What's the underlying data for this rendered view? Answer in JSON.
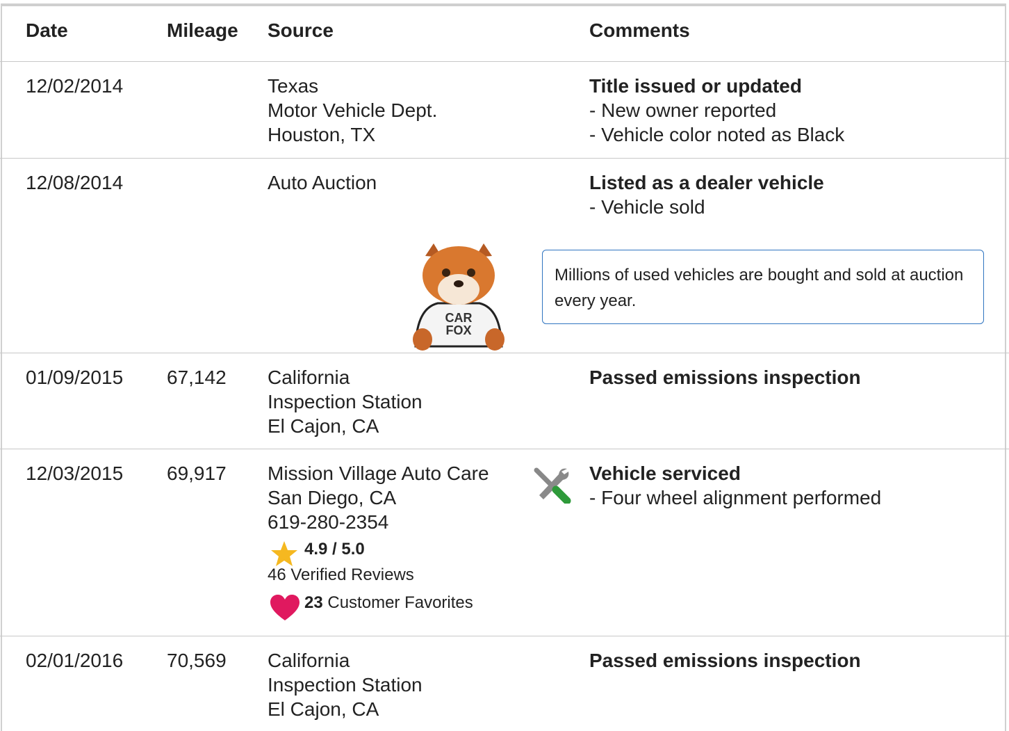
{
  "table": {
    "headers": [
      "Date",
      "Mileage",
      "Source",
      "Comments"
    ],
    "rows": [
      {
        "date": "12/02/2014",
        "source": [
          "Texas",
          "Motor Vehicle Dept.",
          "Houston, TX"
        ],
        "comment_title": "Title issued or updated",
        "comment_items": [
          "- New owner reported",
          "- Vehicle color noted as Black"
        ]
      },
      {
        "date": "12/08/2014",
        "source": [
          "Auto Auction"
        ],
        "comment_title": "Listed as a dealer vehicle",
        "comment_items": [
          "- Vehicle sold"
        ],
        "callout": "Millions of used vehicles are bought and sold at auction every year.",
        "mascot_shirt": [
          "CAR",
          "FOX"
        ]
      },
      {
        "date": "01/09/2015",
        "mileage": "67,142",
        "source": [
          "California",
          "Inspection Station",
          "El Cajon, CA"
        ],
        "comment_title": "Passed emissions inspection"
      },
      {
        "date": "12/03/2015",
        "mileage": "69,917",
        "source": [
          "Mission Village Auto Care",
          "San Diego, CA",
          "619-280-2354"
        ],
        "rating": "4.9 / 5.0",
        "reviews": "46 Verified Reviews",
        "favorites_count": "23",
        "favorites_label": "Customer Favorites",
        "comment_title": "Vehicle serviced",
        "comment_items": [
          "- Four wheel alignment performed"
        ]
      },
      {
        "date": "02/01/2016",
        "mileage": "70,569",
        "source": [
          "California",
          "Inspection Station",
          "El Cajon, CA"
        ],
        "comment_title": "Passed emissions inspection"
      }
    ]
  }
}
